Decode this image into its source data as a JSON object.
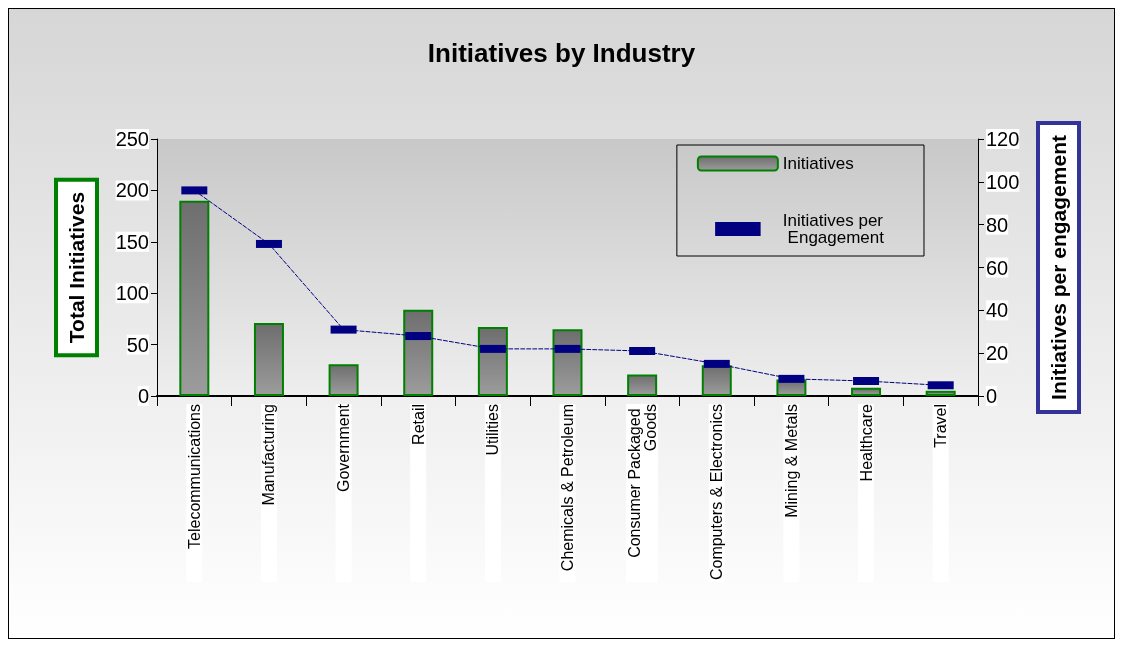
{
  "chart_data": {
    "type": "bar",
    "title": "Initiatives by Industry",
    "categories": [
      "Telecommunications",
      "Manufacturing",
      "Government",
      "Retail",
      "Utilities",
      "Chemicals & Petroleum",
      "Consumer Packaged Goods",
      "Computers & Electronics",
      "Mining & Metals",
      "Healthcare",
      "Travel"
    ],
    "series": [
      {
        "name": "Initiatives",
        "color": "#008000",
        "values": [
          190,
          71,
          31,
          84,
          67,
          65,
          21,
          30,
          16,
          8,
          5
        ]
      },
      {
        "name": "Initiatives per Engagement",
        "type": "line",
        "axis": "y2",
        "color": "#000080",
        "marker": "square",
        "line_style": "dashed",
        "values": [
          96,
          71,
          31,
          28,
          22,
          22,
          21,
          15,
          8,
          7,
          5
        ]
      }
    ],
    "ylabel": "Total Initiatives",
    "y2label": "Initiatives per engagement",
    "ylim": [
      0,
      250
    ],
    "yticks": [
      0,
      50,
      100,
      150,
      200,
      250
    ],
    "y2lim": [
      0,
      120
    ],
    "y2ticks": [
      0,
      20,
      40,
      60,
      80,
      100,
      120
    ],
    "grid": false,
    "legend": "top right"
  }
}
